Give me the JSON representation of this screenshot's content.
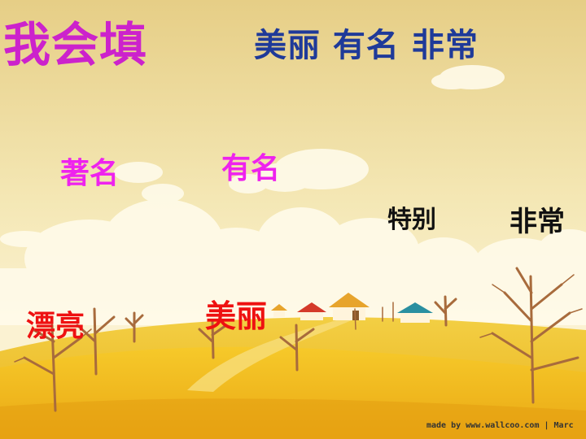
{
  "title": "我会填",
  "answer_line": "美丽 有名 非常",
  "words": {
    "zhuming": "著名",
    "youming": "有名",
    "tebie": "特别",
    "feichang": "非常",
    "piaoliang": "漂亮",
    "meili": "美丽"
  },
  "watermark": "made by www.wallcoo.com | Marc",
  "colors": {
    "title": "#cc22cc",
    "answer": "#1f3a99",
    "magenta_words": "#ee22ee",
    "red_words": "#ee1111",
    "black_words": "#111111"
  }
}
